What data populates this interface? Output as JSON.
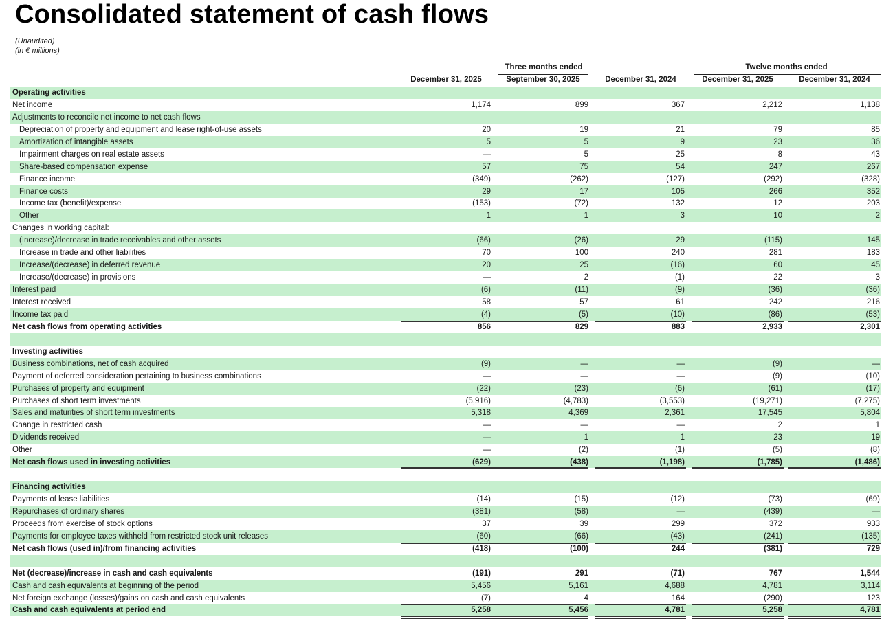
{
  "title": "Consolidated statement of cash flows",
  "subtitle_unaudited": "(Unaudited)",
  "subtitle_units": "(in € millions)",
  "groups": {
    "three_months": "Three months ended",
    "twelve_months": "Twelve months ended"
  },
  "columns": [
    "December 31, 2025",
    "September 30, 2025",
    "December 31, 2024",
    "December 31, 2025",
    "December 31, 2024"
  ],
  "rows": [
    {
      "label": "Operating activities",
      "style": "section",
      "values": []
    },
    {
      "label": "Net income",
      "style": "normal",
      "values": [
        "1,174",
        "899",
        "367",
        "2,212",
        "1,138"
      ]
    },
    {
      "label": "Adjustments to reconcile net income to net cash flows",
      "style": "normal",
      "values": []
    },
    {
      "label": "Depreciation of property and equipment and lease right-of-use assets",
      "style": "indent",
      "values": [
        "20",
        "19",
        "21",
        "79",
        "85"
      ]
    },
    {
      "label": "Amortization of intangible assets",
      "style": "indent",
      "values": [
        "5",
        "5",
        "9",
        "23",
        "36"
      ]
    },
    {
      "label": "Impairment charges on real estate assets",
      "style": "indent",
      "values": [
        "—",
        "5",
        "25",
        "8",
        "43"
      ]
    },
    {
      "label": "Share-based compensation expense",
      "style": "indent",
      "values": [
        "57",
        "75",
        "54",
        "247",
        "267"
      ]
    },
    {
      "label": "Finance income",
      "style": "indent",
      "values": [
        "(349)",
        "(262)",
        "(127)",
        "(292)",
        "(328)"
      ]
    },
    {
      "label": "Finance costs",
      "style": "indent",
      "values": [
        "29",
        "17",
        "105",
        "266",
        "352"
      ]
    },
    {
      "label": "Income tax (benefit)/expense",
      "style": "indent",
      "values": [
        "(153)",
        "(72)",
        "132",
        "12",
        "203"
      ]
    },
    {
      "label": "Other",
      "style": "indent",
      "values": [
        "1",
        "1",
        "3",
        "10",
        "2"
      ]
    },
    {
      "label": "Changes in working capital:",
      "style": "normal",
      "values": []
    },
    {
      "label": "(Increase)/decrease in trade receivables and other assets",
      "style": "indent",
      "values": [
        "(66)",
        "(26)",
        "29",
        "(115)",
        "145"
      ]
    },
    {
      "label": "Increase in trade and other liabilities",
      "style": "indent",
      "values": [
        "70",
        "100",
        "240",
        "281",
        "183"
      ]
    },
    {
      "label": "Increase/(decrease) in deferred revenue",
      "style": "indent",
      "values": [
        "20",
        "25",
        "(16)",
        "60",
        "45"
      ]
    },
    {
      "label": "Increase/(decrease) in provisions",
      "style": "indent",
      "values": [
        "—",
        "2",
        "(1)",
        "22",
        "3"
      ]
    },
    {
      "label": "Interest paid",
      "style": "normal",
      "values": [
        "(6)",
        "(11)",
        "(9)",
        "(36)",
        "(36)"
      ]
    },
    {
      "label": "Interest received",
      "style": "normal",
      "values": [
        "58",
        "57",
        "61",
        "242",
        "216"
      ]
    },
    {
      "label": "Income tax paid",
      "style": "normal",
      "values": [
        "(4)",
        "(5)",
        "(10)",
        "(86)",
        "(53)"
      ]
    },
    {
      "label": "Net cash flows from operating activities",
      "style": "total",
      "values": [
        "856",
        "829",
        "883",
        "2,933",
        "2,301"
      ]
    },
    {
      "label": "",
      "style": "spacer",
      "values": []
    },
    {
      "label": "Investing activities",
      "style": "section",
      "values": []
    },
    {
      "label": "Business combinations, net of cash acquired",
      "style": "normal",
      "values": [
        "(9)",
        "—",
        "—",
        "(9)",
        "—"
      ]
    },
    {
      "label": "Payment of deferred consideration pertaining to business combinations",
      "style": "normal",
      "values": [
        "—",
        "—",
        "—",
        "(9)",
        "(10)"
      ]
    },
    {
      "label": "Purchases of property and equipment",
      "style": "normal",
      "values": [
        "(22)",
        "(23)",
        "(6)",
        "(61)",
        "(17)"
      ]
    },
    {
      "label": "Purchases of short term investments",
      "style": "normal",
      "values": [
        "(5,916)",
        "(4,783)",
        "(3,553)",
        "(19,271)",
        "(7,275)"
      ]
    },
    {
      "label": "Sales and maturities of short term investments",
      "style": "normal",
      "values": [
        "5,318",
        "4,369",
        "2,361",
        "17,545",
        "5,804"
      ]
    },
    {
      "label": "Change in restricted cash",
      "style": "normal",
      "values": [
        "—",
        "—",
        "—",
        "2",
        "1"
      ]
    },
    {
      "label": "Dividends received",
      "style": "normal",
      "values": [
        "—",
        "1",
        "1",
        "23",
        "19"
      ]
    },
    {
      "label": "Other",
      "style": "normal",
      "values": [
        "—",
        "(2)",
        "(1)",
        "(5)",
        "(8)"
      ]
    },
    {
      "label": "Net cash flows used in investing activities",
      "style": "total",
      "values": [
        "(629)",
        "(438)",
        "(1,198)",
        "(1,785)",
        "(1,486)"
      ]
    },
    {
      "label": "",
      "style": "spacer",
      "values": []
    },
    {
      "label": "Financing activities",
      "style": "section",
      "values": []
    },
    {
      "label": "Payments of lease liabilities",
      "style": "normal",
      "values": [
        "(14)",
        "(15)",
        "(12)",
        "(73)",
        "(69)"
      ]
    },
    {
      "label": "Repurchases of ordinary shares",
      "style": "normal",
      "values": [
        "(381)",
        "(58)",
        "—",
        "(439)",
        "—"
      ]
    },
    {
      "label": "Proceeds from exercise of stock options",
      "style": "normal",
      "values": [
        "37",
        "39",
        "299",
        "372",
        "933"
      ]
    },
    {
      "label": "Payments for employee taxes withheld from restricted stock unit releases",
      "style": "normal",
      "values": [
        "(60)",
        "(66)",
        "(43)",
        "(241)",
        "(135)"
      ]
    },
    {
      "label": "Net cash flows (used in)/from financing activities",
      "style": "total",
      "values": [
        "(418)",
        "(100)",
        "244",
        "(381)",
        "729"
      ]
    },
    {
      "label": "",
      "style": "spacer",
      "values": []
    },
    {
      "label": "Net (decrease)/increase in cash and cash equivalents",
      "style": "boldrow",
      "values": [
        "(191)",
        "291",
        "(71)",
        "767",
        "1,544"
      ]
    },
    {
      "label": "Cash and cash equivalents at beginning of the period",
      "style": "normal",
      "values": [
        "5,456",
        "5,161",
        "4,688",
        "4,781",
        "3,114"
      ]
    },
    {
      "label": "Net foreign exchange (losses)/gains on cash and cash equivalents",
      "style": "normal",
      "values": [
        "(7)",
        "4",
        "164",
        "(290)",
        "123"
      ]
    },
    {
      "label": "Cash and cash equivalents at period end",
      "style": "grandtotal",
      "values": [
        "5,258",
        "5,456",
        "4,781",
        "5,258",
        "4,781"
      ]
    }
  ]
}
